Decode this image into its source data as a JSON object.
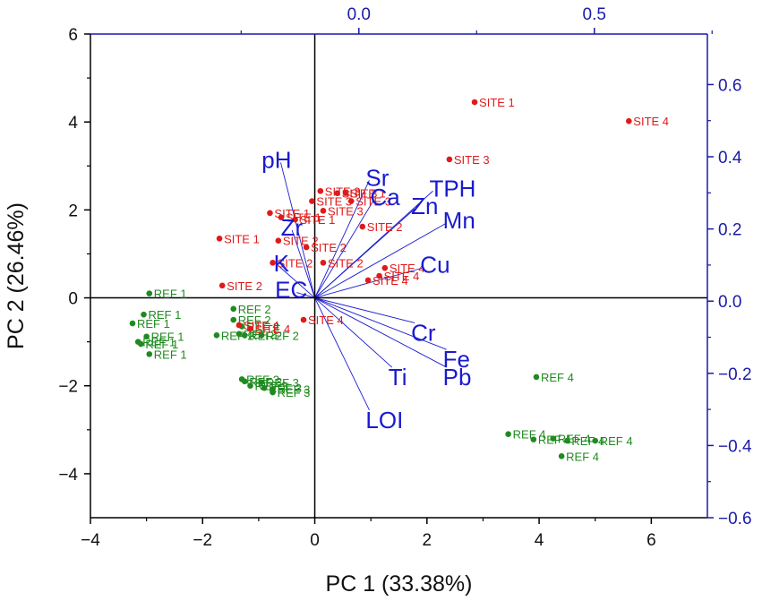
{
  "chart_data": {
    "type": "biplot",
    "xlabel": "PC 1 (33.38%)",
    "ylabel": "PC 2 (26.46%)",
    "xlim": [
      -4,
      7
    ],
    "ylim": [
      -5,
      6
    ],
    "x_ticks": [
      -4,
      -2,
      0,
      2,
      4,
      6
    ],
    "y_ticks": [
      -4,
      -2,
      0,
      2,
      4,
      6
    ],
    "secondary_xlim": [
      -0.57,
      0.74
    ],
    "secondary_ylim": [
      -0.6,
      0.74
    ],
    "secondary_x_ticks": [
      {
        "v": 0,
        "label": "0.0"
      },
      {
        "v": 0.5,
        "label": "0.5"
      }
    ],
    "secondary_y_ticks": [
      {
        "v": 0.6,
        "label": "0.6"
      },
      {
        "v": 0.4,
        "label": "0.4"
      },
      {
        "v": 0.2,
        "label": "0.2"
      },
      {
        "v": 0,
        "label": "0.0"
      },
      {
        "v": -0.2,
        "label": "−0.2"
      },
      {
        "v": -0.4,
        "label": "−0.4"
      },
      {
        "v": -0.6,
        "label": "−0.6"
      }
    ],
    "colors": {
      "site": "#e01a1a",
      "ref": "#1f8a1f",
      "vector": "#1a1ad0",
      "axis2": "#1a1aa8"
    },
    "vector_scale": 8.1,
    "site_points": [
      {
        "x": 2.85,
        "y": 4.45,
        "label": "SITE 1"
      },
      {
        "x": 5.6,
        "y": 4.02,
        "label": "SITE 4"
      },
      {
        "x": 2.4,
        "y": 3.15,
        "label": "SITE 3"
      },
      {
        "x": 0.1,
        "y": 2.43,
        "label": "SITE 3"
      },
      {
        "x": 0.4,
        "y": 2.38,
        "label": "SITE 3"
      },
      {
        "x": 0.55,
        "y": 2.38,
        "label": "SITE 1"
      },
      {
        "x": -0.05,
        "y": 2.2,
        "label": "SITE 3"
      },
      {
        "x": 0.65,
        "y": 2.2,
        "label": "SITE 3"
      },
      {
        "x": 0.15,
        "y": 1.98,
        "label": "SITE 3"
      },
      {
        "x": -0.8,
        "y": 1.93,
        "label": "SITE 1"
      },
      {
        "x": -0.6,
        "y": 1.83,
        "label": "SITE 1"
      },
      {
        "x": -0.35,
        "y": 1.78,
        "label": "SITE 1"
      },
      {
        "x": 0.85,
        "y": 1.62,
        "label": "SITE 2"
      },
      {
        "x": -1.7,
        "y": 1.35,
        "label": "SITE 1"
      },
      {
        "x": -0.65,
        "y": 1.3,
        "label": "SITE 2"
      },
      {
        "x": -0.15,
        "y": 1.15,
        "label": "SITE 2"
      },
      {
        "x": -0.75,
        "y": 0.8,
        "label": "SITE 2"
      },
      {
        "x": 0.15,
        "y": 0.8,
        "label": "SITE 2"
      },
      {
        "x": 1.25,
        "y": 0.68,
        "label": "SITE 4"
      },
      {
        "x": 1.15,
        "y": 0.5,
        "label": "SITE 4"
      },
      {
        "x": 0.95,
        "y": 0.4,
        "label": "SITE 4"
      },
      {
        "x": -1.65,
        "y": 0.28,
        "label": "SITE 2"
      },
      {
        "x": -1.35,
        "y": -0.62,
        "label": "SITE 4"
      },
      {
        "x": -1.15,
        "y": -0.7,
        "label": "SITE 4"
      },
      {
        "x": -0.2,
        "y": -0.5,
        "label": "SITE 4"
      }
    ],
    "ref_points": [
      {
        "x": -2.95,
        "y": 0.1,
        "label": "REF 1"
      },
      {
        "x": -3.05,
        "y": -0.38,
        "label": "REF 1"
      },
      {
        "x": -3.25,
        "y": -0.58,
        "label": "REF 1"
      },
      {
        "x": -3.0,
        "y": -0.88,
        "label": "REF 1"
      },
      {
        "x": -3.15,
        "y": -1.0,
        "label": "REF 1"
      },
      {
        "x": -3.1,
        "y": -1.05,
        "label": "REF 1"
      },
      {
        "x": -2.95,
        "y": -1.28,
        "label": "REF 1"
      },
      {
        "x": -1.45,
        "y": -0.25,
        "label": "REF 2"
      },
      {
        "x": -1.45,
        "y": -0.5,
        "label": "REF 2"
      },
      {
        "x": -1.3,
        "y": -0.65,
        "label": "REF 2"
      },
      {
        "x": -1.75,
        "y": -0.85,
        "label": "REF 2"
      },
      {
        "x": -1.35,
        "y": -0.82,
        "label": "REF 2"
      },
      {
        "x": -1.25,
        "y": -0.85,
        "label": "REF 2"
      },
      {
        "x": -0.95,
        "y": -0.85,
        "label": "REF 2"
      },
      {
        "x": -1.3,
        "y": -1.85,
        "label": "REF 3"
      },
      {
        "x": -1.25,
        "y": -1.9,
        "label": "REF 3"
      },
      {
        "x": -0.95,
        "y": -1.92,
        "label": "REF 3"
      },
      {
        "x": -1.15,
        "y": -2.0,
        "label": "REF 3"
      },
      {
        "x": -0.9,
        "y": -2.05,
        "label": "REF 3"
      },
      {
        "x": -0.75,
        "y": -2.08,
        "label": "REF 3"
      },
      {
        "x": -0.75,
        "y": -2.15,
        "label": "REF 3"
      },
      {
        "x": 3.95,
        "y": -1.8,
        "label": "REF 4"
      },
      {
        "x": 3.45,
        "y": -3.1,
        "label": "REF 4"
      },
      {
        "x": 3.9,
        "y": -3.22,
        "label": "REF 4"
      },
      {
        "x": 4.25,
        "y": -3.2,
        "label": "REF 4"
      },
      {
        "x": 4.5,
        "y": -3.25,
        "label": "REF 4"
      },
      {
        "x": 4.4,
        "y": -3.6,
        "label": "REF 4"
      },
      {
        "x": 5.0,
        "y": -3.25,
        "label": "REF 4"
      }
    ],
    "vectors": [
      {
        "name": "pH",
        "x": -0.075,
        "y": 0.38
      },
      {
        "name": "Sr",
        "x": 0.12,
        "y": 0.33
      },
      {
        "name": "TPH",
        "x": 0.26,
        "y": 0.3
      },
      {
        "name": "Ca",
        "x": 0.13,
        "y": 0.275
      },
      {
        "name": "Zn",
        "x": 0.22,
        "y": 0.25
      },
      {
        "name": "Mn",
        "x": 0.29,
        "y": 0.21
      },
      {
        "name": "Zr",
        "x": -0.05,
        "y": 0.19
      },
      {
        "name": "K",
        "x": -0.08,
        "y": 0.09
      },
      {
        "name": "Cu",
        "x": 0.24,
        "y": 0.085
      },
      {
        "name": "EC",
        "x": -0.04,
        "y": 0.015
      },
      {
        "name": "Cr",
        "x": 0.22,
        "y": -0.07
      },
      {
        "name": "Fe",
        "x": 0.29,
        "y": -0.145
      },
      {
        "name": "Pb",
        "x": 0.29,
        "y": -0.195
      },
      {
        "name": "Ti",
        "x": 0.17,
        "y": -0.195
      },
      {
        "name": "LOI",
        "x": 0.12,
        "y": -0.315
      }
    ]
  }
}
